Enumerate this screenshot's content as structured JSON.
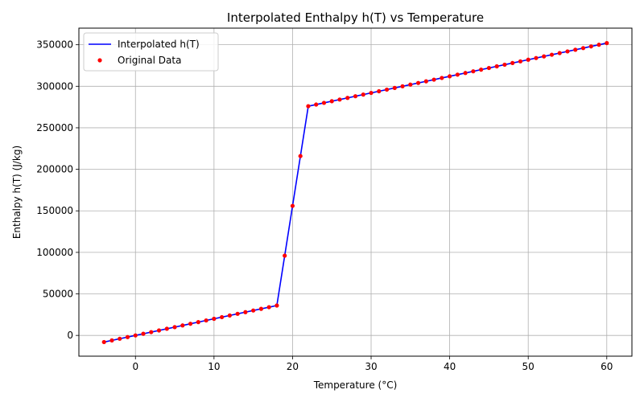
{
  "chart_data": {
    "type": "line",
    "title": "Interpolated Enthalpy h(T) vs Temperature",
    "xlabel": "Temperature (°C)",
    "ylabel": "Enthalpy h(T) (J/kg)",
    "xlim": [
      -7.2,
      63.2
    ],
    "ylim": [
      -25000,
      370000
    ],
    "xticks": [
      0,
      10,
      20,
      30,
      40,
      50,
      60
    ],
    "yticks": [
      0,
      50000,
      100000,
      150000,
      200000,
      250000,
      300000,
      350000
    ],
    "grid": true,
    "legend": "top-left",
    "colors": {
      "line": "#0000ff",
      "scatter": "#ff0000"
    },
    "series": [
      {
        "name": "Interpolated h(T)",
        "kind": "line",
        "x": [
          -4,
          -3,
          -2,
          -1,
          0,
          1,
          2,
          3,
          4,
          5,
          6,
          7,
          8,
          9,
          10,
          11,
          12,
          13,
          14,
          15,
          16,
          17,
          18,
          19,
          20,
          21,
          22,
          23,
          24,
          25,
          26,
          27,
          28,
          29,
          30,
          31,
          32,
          33,
          34,
          35,
          36,
          37,
          38,
          39,
          40,
          41,
          42,
          43,
          44,
          45,
          46,
          47,
          48,
          49,
          50,
          51,
          52,
          53,
          54,
          55,
          56,
          57,
          58,
          59,
          60
        ],
        "y": [
          -8000,
          -6000,
          -4000,
          -2000,
          0,
          2000,
          4000,
          6000,
          8000,
          10000,
          12000,
          14000,
          16000,
          18000,
          20000,
          22000,
          24000,
          26000,
          28000,
          30000,
          32000,
          34000,
          36000,
          96000,
          156000,
          216000,
          276000,
          278000,
          280000,
          282000,
          284000,
          286000,
          288000,
          290000,
          292000,
          294000,
          296000,
          298000,
          300000,
          302000,
          304000,
          306000,
          308000,
          310000,
          312000,
          314000,
          316000,
          318000,
          320000,
          322000,
          324000,
          326000,
          328000,
          330000,
          332000,
          334000,
          336000,
          338000,
          340000,
          342000,
          344000,
          346000,
          348000,
          350000,
          352000
        ]
      },
      {
        "name": "Original Data",
        "kind": "scatter",
        "x": [
          -4,
          -3,
          -2,
          -1,
          0,
          1,
          2,
          3,
          4,
          5,
          6,
          7,
          8,
          9,
          10,
          11,
          12,
          13,
          14,
          15,
          16,
          17,
          18,
          19,
          20,
          21,
          22,
          23,
          24,
          25,
          26,
          27,
          28,
          29,
          30,
          31,
          32,
          33,
          34,
          35,
          36,
          37,
          38,
          39,
          40,
          41,
          42,
          43,
          44,
          45,
          46,
          47,
          48,
          49,
          50,
          51,
          52,
          53,
          54,
          55,
          56,
          57,
          58,
          59,
          60
        ],
        "y": [
          -8000,
          -6000,
          -4000,
          -2000,
          0,
          2000,
          4000,
          6000,
          8000,
          10000,
          12000,
          14000,
          16000,
          18000,
          20000,
          22000,
          24000,
          26000,
          28000,
          30000,
          32000,
          34000,
          36000,
          96000,
          156000,
          216000,
          276000,
          278000,
          280000,
          282000,
          284000,
          286000,
          288000,
          290000,
          292000,
          294000,
          296000,
          298000,
          300000,
          302000,
          304000,
          306000,
          308000,
          310000,
          312000,
          314000,
          316000,
          318000,
          320000,
          322000,
          324000,
          326000,
          328000,
          330000,
          332000,
          334000,
          336000,
          338000,
          340000,
          342000,
          344000,
          346000,
          348000,
          350000,
          352000
        ]
      }
    ]
  }
}
